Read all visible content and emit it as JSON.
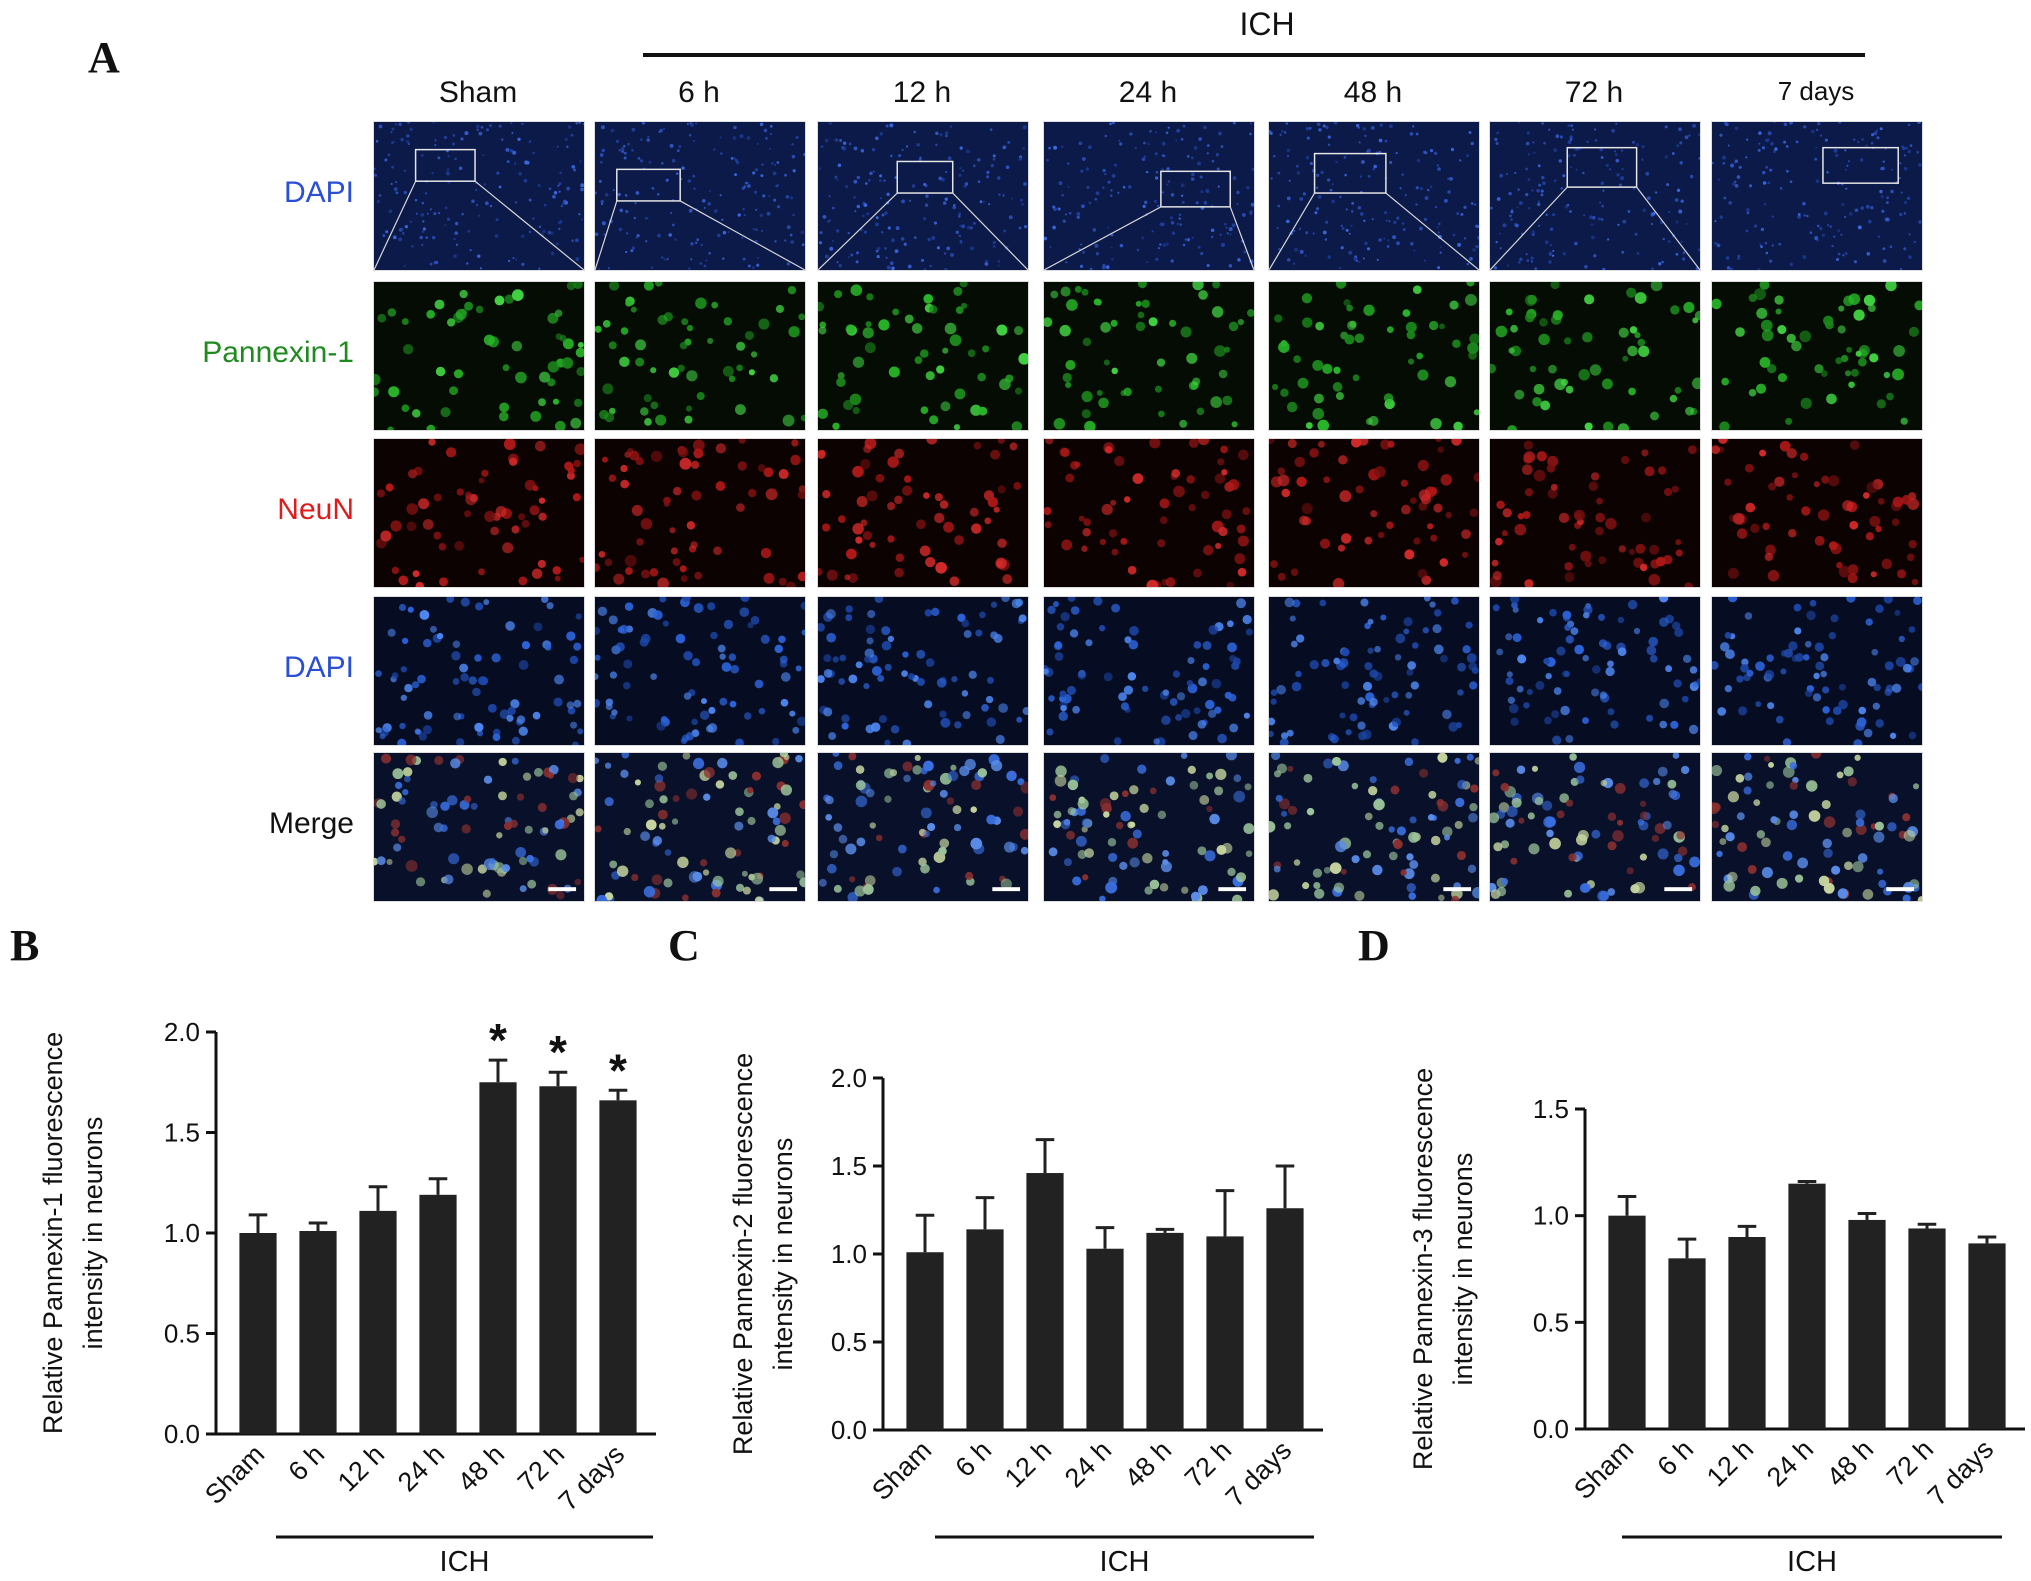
{
  "panels": {
    "a": "A",
    "b": "B",
    "c": "C",
    "d": "D"
  },
  "figure_a": {
    "group_label": "ICH",
    "columns": [
      "Sham",
      "6 h",
      "12 h",
      "24 h",
      "48 h",
      "72 h",
      "7 days"
    ],
    "rows": [
      {
        "label": "DAPI",
        "color": "#2a4fd6",
        "kind": "overview"
      },
      {
        "label": "Pannexin-1",
        "color": "#1f8a1f",
        "kind": "green"
      },
      {
        "label": "NeuN",
        "color": "#e01b1b",
        "kind": "red"
      },
      {
        "label": "DAPI",
        "color": "#2a4fd6",
        "kind": "blue"
      },
      {
        "label": "Merge",
        "color": "#111111",
        "kind": "merge"
      }
    ]
  },
  "chart_data": [
    {
      "type": "bar",
      "panel": "B",
      "categories": [
        "Sham",
        "6 h",
        "12 h",
        "24 h",
        "48 h",
        "72 h",
        "7 days"
      ],
      "values": [
        1.0,
        1.01,
        1.11,
        1.19,
        1.75,
        1.73,
        1.66
      ],
      "errors": [
        0.09,
        0.04,
        0.12,
        0.08,
        0.11,
        0.07,
        0.05
      ],
      "significance": [
        "",
        "",
        "",
        "",
        "*",
        "*",
        "*"
      ],
      "ylabel_lines": [
        "Relative Pannexin-1 fluorescence",
        "intensity in neurons"
      ],
      "yticks": [
        "0.0",
        "0.5",
        "1.0",
        "1.5",
        "2.0"
      ],
      "ylim": [
        0,
        2.0
      ],
      "group_label": "ICH",
      "bar_color": "#222222"
    },
    {
      "type": "bar",
      "panel": "C",
      "categories": [
        "Sham",
        "6 h",
        "12 h",
        "24 h",
        "48 h",
        "72 h",
        "7 days"
      ],
      "values": [
        1.01,
        1.14,
        1.46,
        1.03,
        1.12,
        1.1,
        1.26
      ],
      "errors": [
        0.21,
        0.18,
        0.19,
        0.12,
        0.02,
        0.26,
        0.24
      ],
      "significance": [
        "",
        "",
        "",
        "",
        "",
        "",
        ""
      ],
      "ylabel_lines": [
        "Relative Pannexin-2 fluorescence",
        "intensity in neurons"
      ],
      "yticks": [
        "0.0",
        "0.5",
        "1.0",
        "1.5",
        "2.0"
      ],
      "ylim": [
        0,
        2.0
      ],
      "group_label": "ICH",
      "bar_color": "#222222"
    },
    {
      "type": "bar",
      "panel": "D",
      "categories": [
        "Sham",
        "6 h",
        "12 h",
        "24 h",
        "48 h",
        "72 h",
        "7 days"
      ],
      "values": [
        1.0,
        0.8,
        0.9,
        1.15,
        0.98,
        0.94,
        0.87
      ],
      "errors": [
        0.09,
        0.09,
        0.05,
        0.01,
        0.03,
        0.02,
        0.03
      ],
      "significance": [
        "",
        "",
        "",
        "",
        "",
        "",
        ""
      ],
      "ylabel_lines": [
        "Relative Pannexin-3 fluorescence",
        "intensity in neurons"
      ],
      "yticks": [
        "0.0",
        "0.5",
        "1.0",
        "1.5"
      ],
      "ylim": [
        0,
        1.5
      ],
      "group_label": "ICH",
      "bar_color": "#222222"
    }
  ]
}
